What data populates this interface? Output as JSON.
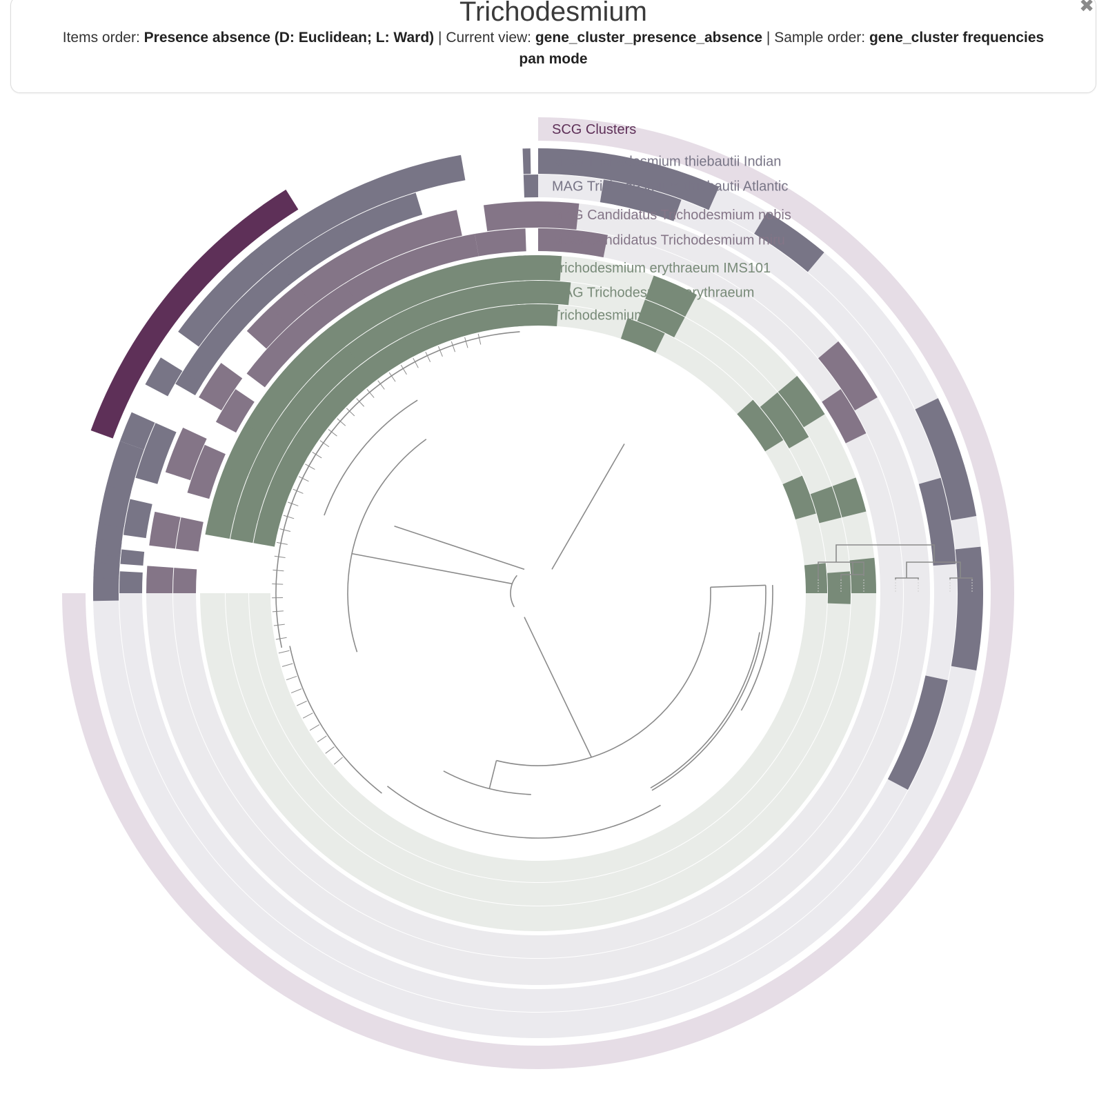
{
  "header": {
    "title": "Trichodesmium",
    "close_glyph": "✖",
    "items_order_label": "Items order:",
    "items_order_value": "Presence absence (D: Euclidean; L: Ward)",
    "sep1": "|",
    "current_view_label": "Current view:",
    "current_view_value": "gene_cluster_presence_absence",
    "sep2": "|",
    "sample_order_label": "Sample order:",
    "sample_order_value": "gene_cluster frequencies",
    "mode": "pan mode"
  },
  "layers": [
    {
      "label": "SCG Clusters",
      "color": "#5e3058",
      "light": "#e6dde6"
    },
    {
      "label": "MAG Trichodesmium thiebautii Indian",
      "color": "#787586",
      "light": "#ebeaee"
    },
    {
      "label": "MAG Trichodesmium thiebautii Atlantic",
      "color": "#787586",
      "light": "#ebeaee"
    },
    {
      "label": "MAG Candidatus Trichodesmium nobis",
      "color": "#847587",
      "light": "#ebeaed"
    },
    {
      "label": "MAG Candidatus Trichodesmium miru",
      "color": "#847587",
      "light": "#ebeaed"
    },
    {
      "label": "Trichodesmium erythraeum IMS101",
      "color": "#788a78",
      "light": "#e9ece8"
    },
    {
      "label": "MAG Trichodesmium erythraeum",
      "color": "#788a78",
      "light": "#e9ece8"
    },
    {
      "label": "Trichodesmium sp",
      "color": "#788a78",
      "light": "#e9ece8"
    }
  ],
  "colors": {
    "tree_line": "#8a8a8a",
    "label_scg": "#5e3058",
    "label_thiebautii": "#787586",
    "label_candidatus": "#847587",
    "label_erythraeum": "#788a78"
  }
}
